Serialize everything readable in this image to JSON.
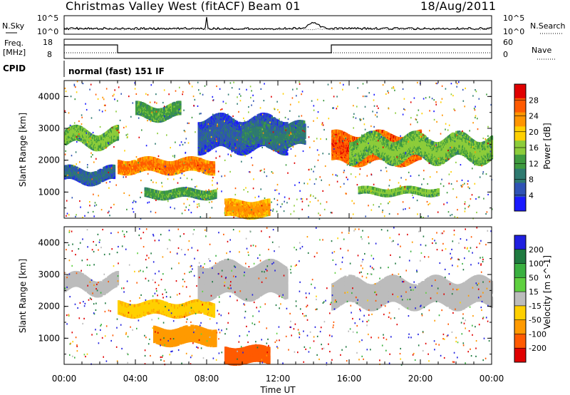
{
  "header": {
    "title": "Christmas Valley West (fitACF)",
    "beam": "Beam 01",
    "date": "18/Aug/2011"
  },
  "nsky_panel": {
    "left_label": "N.Sky",
    "right_label": "N.Search",
    "left_ticks": [
      "10^5",
      "10^0"
    ],
    "right_ticks": [
      "10^5",
      "10^0"
    ]
  },
  "freq_panel": {
    "left_label_1": "Freq.",
    "left_label_2": "[MHz]",
    "right_label": "Nave",
    "left_ticks": [
      "18",
      "8"
    ],
    "right_ticks": [
      "60",
      "0"
    ]
  },
  "cpid_panel": {
    "label": "CPID",
    "text": "normal (fast) 151 IF"
  },
  "colors": {
    "power_scale": [
      "#1a1aff",
      "#2f53b5",
      "#2e7a70",
      "#3f9b3f",
      "#8ccc3a",
      "#ffd000",
      "#ff9500",
      "#ff5a00",
      "#e00000"
    ],
    "velocity_scale": [
      "#2020e0",
      "#1f7a40",
      "#3ab040",
      "#5fd040",
      "#bcbcbc",
      "#ffd000",
      "#ff9a00",
      "#ff5a00",
      "#e00000"
    ]
  },
  "chart_data": [
    {
      "type": "heatmap",
      "name": "power",
      "ylabel": "Slant Range [km]",
      "yticks": [
        "1000",
        "2000",
        "3000",
        "4000"
      ],
      "ylim": [
        180,
        4500
      ],
      "xlim": [
        0,
        24
      ],
      "colorbar_label": "Power [dB]",
      "colorbar_ticks": [
        "4",
        "8",
        "12",
        "16",
        "20",
        "24",
        "28"
      ],
      "colorbar_range": [
        0,
        32
      ],
      "bands": [
        {
          "t0": 0.0,
          "t1": 3.0,
          "r0": 2450,
          "r1": 2900,
          "v": 14,
          "osc": 170
        },
        {
          "t0": 0.0,
          "t1": 2.8,
          "r0": 1300,
          "r1": 1700,
          "v": 6,
          "osc": 120
        },
        {
          "t0": 3.0,
          "t1": 8.4,
          "r0": 1600,
          "r1": 2000,
          "v": 24,
          "osc": 80
        },
        {
          "t0": 4.5,
          "t1": 8.5,
          "r0": 800,
          "r1": 1050,
          "v": 12,
          "osc": 60
        },
        {
          "t0": 7.5,
          "t1": 12.5,
          "r0": 2300,
          "r1": 3300,
          "v": 5,
          "osc": 150
        },
        {
          "t0": 10.0,
          "t1": 13.5,
          "r0": 2400,
          "r1": 3100,
          "v": 8,
          "osc": 120
        },
        {
          "t0": 15.0,
          "t1": 20.0,
          "r0": 1900,
          "r1": 2800,
          "v": 26,
          "osc": 120
        },
        {
          "t0": 16.0,
          "t1": 24.0,
          "r0": 2000,
          "r1": 2700,
          "v": 14,
          "osc": 180
        },
        {
          "t0": 16.5,
          "t1": 21.0,
          "r0": 900,
          "r1": 1100,
          "v": 14,
          "osc": 60
        },
        {
          "t0": 9.0,
          "t1": 11.5,
          "r0": 200,
          "r1": 700,
          "v": 22,
          "osc": 60
        },
        {
          "t0": 4.0,
          "t1": 6.5,
          "r0": 3300,
          "r1": 3700,
          "v": 12,
          "osc": 120
        }
      ]
    },
    {
      "type": "heatmap",
      "name": "velocity",
      "ylabel": "Slant Range [km]",
      "yticks": [
        "1000",
        "2000",
        "3000",
        "4000"
      ],
      "ylim": [
        180,
        4500
      ],
      "xlim": [
        0,
        24
      ],
      "xlabel": "Time UT",
      "xticks": [
        "00:00",
        "04:00",
        "08:00",
        "12:00",
        "16:00",
        "20:00",
        "00:00"
      ],
      "colorbar_label": "Velocity [m s^-1]",
      "colorbar_ticks": [
        "200",
        "100",
        "50",
        "15",
        "-15",
        "-50",
        "-100",
        "-200"
      ],
      "colorbar_range": [
        -250,
        250
      ],
      "bands": [
        {
          "t0": 0.0,
          "t1": 3.0,
          "r0": 2450,
          "r1": 2900,
          "v": 0,
          "osc": 170
        },
        {
          "t0": 3.0,
          "t1": 8.4,
          "r0": 1700,
          "r1": 2100,
          "v": -30,
          "osc": 80
        },
        {
          "t0": 5.0,
          "t1": 8.5,
          "r0": 800,
          "r1": 1300,
          "v": -60,
          "osc": 80
        },
        {
          "t0": 7.5,
          "t1": 12.5,
          "r0": 2300,
          "r1": 3300,
          "v": -5,
          "osc": 150
        },
        {
          "t0": 15.0,
          "t1": 24.0,
          "r0": 2000,
          "r1": 2800,
          "v": 2,
          "osc": 150
        },
        {
          "t0": 9.0,
          "t1": 11.5,
          "r0": 200,
          "r1": 700,
          "v": -80,
          "osc": 60
        }
      ]
    }
  ]
}
